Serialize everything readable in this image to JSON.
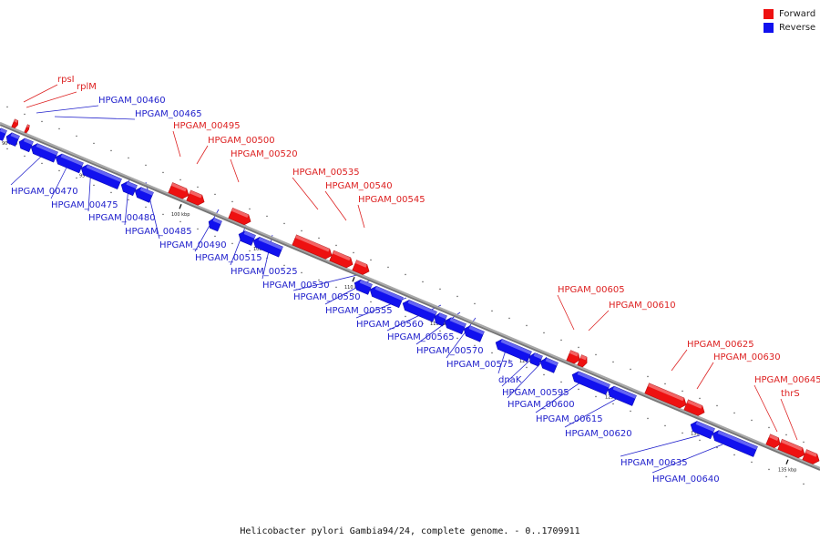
{
  "legend": {
    "forward_label": "Forward",
    "reverse_label": "Reverse",
    "forward_color": "#ee1111",
    "reverse_color": "#1111ee"
  },
  "colors": {
    "backbone": "#777777",
    "leader_forward": "#dd2222",
    "leader_reverse": "#2222cc",
    "tick": "#111111"
  },
  "caption": "Helicobacter pylori Gambia94/24, complete genome. - 0..1709911",
  "axis": {
    "tick_labels": [
      "90 kbp",
      "95 kbp",
      "100 kbp",
      "105 kbp",
      "110 kbp",
      "115 kbp",
      "120 kbp",
      "125 kbp",
      "130 kbp",
      "135 kbp"
    ]
  },
  "genes": [
    {
      "name": "rpsI",
      "strand": "forward"
    },
    {
      "name": "rplM",
      "strand": "forward"
    },
    {
      "name": "HPGAM_00460",
      "strand": "reverse"
    },
    {
      "name": "HPGAM_00465",
      "strand": "reverse"
    },
    {
      "name": "HPGAM_00470",
      "strand": "reverse"
    },
    {
      "name": "HPGAM_00475",
      "strand": "reverse"
    },
    {
      "name": "HPGAM_00480",
      "strand": "reverse"
    },
    {
      "name": "HPGAM_00485",
      "strand": "reverse"
    },
    {
      "name": "HPGAM_00490",
      "strand": "reverse"
    },
    {
      "name": "HPGAM_00495",
      "strand": "forward"
    },
    {
      "name": "HPGAM_00500",
      "strand": "forward"
    },
    {
      "name": "HPGAM_00515",
      "strand": "reverse"
    },
    {
      "name": "HPGAM_00520",
      "strand": "forward"
    },
    {
      "name": "HPGAM_00525",
      "strand": "reverse"
    },
    {
      "name": "HPGAM_00530",
      "strand": "reverse"
    },
    {
      "name": "HPGAM_00535",
      "strand": "forward"
    },
    {
      "name": "HPGAM_00540",
      "strand": "forward"
    },
    {
      "name": "HPGAM_00545",
      "strand": "forward"
    },
    {
      "name": "HPGAM_00550",
      "strand": "reverse"
    },
    {
      "name": "HPGAM_00555",
      "strand": "reverse"
    },
    {
      "name": "HPGAM_00560",
      "strand": "reverse"
    },
    {
      "name": "HPGAM_00565",
      "strand": "reverse"
    },
    {
      "name": "HPGAM_00570",
      "strand": "reverse"
    },
    {
      "name": "HPGAM_00575",
      "strand": "reverse"
    },
    {
      "name": "dnaK",
      "strand": "reverse"
    },
    {
      "name": "HPGAM_00595",
      "strand": "reverse"
    },
    {
      "name": "HPGAM_00600",
      "strand": "reverse"
    },
    {
      "name": "HPGAM_00605",
      "strand": "forward"
    },
    {
      "name": "HPGAM_00610",
      "strand": "forward"
    },
    {
      "name": "HPGAM_00615",
      "strand": "reverse"
    },
    {
      "name": "HPGAM_00620",
      "strand": "reverse"
    },
    {
      "name": "HPGAM_00625",
      "strand": "forward"
    },
    {
      "name": "HPGAM_00630",
      "strand": "forward"
    },
    {
      "name": "HPGAM_00635",
      "strand": "reverse"
    },
    {
      "name": "HPGAM_00640",
      "strand": "reverse"
    },
    {
      "name": "HPGAM_00645",
      "strand": "forward"
    },
    {
      "name": "thrS",
      "strand": "forward"
    }
  ]
}
